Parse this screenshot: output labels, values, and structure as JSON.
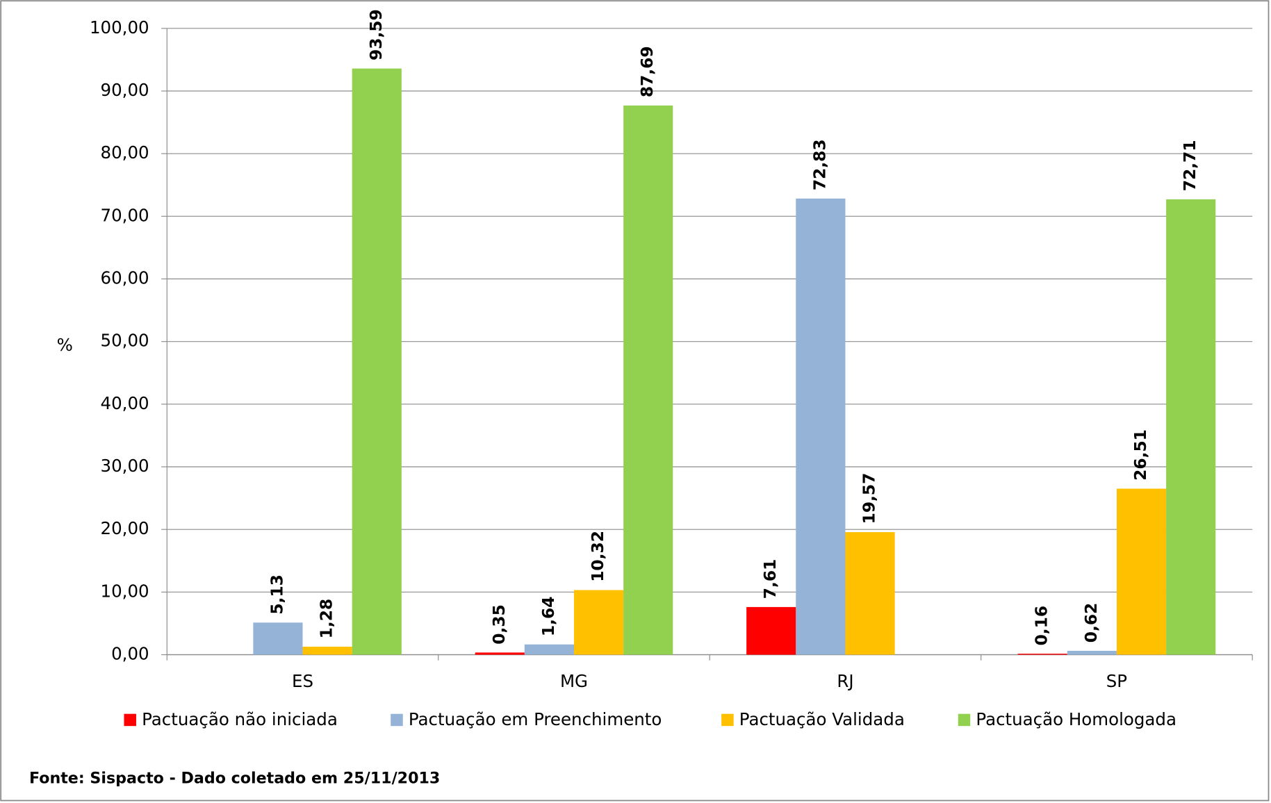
{
  "chart_data": {
    "type": "bar",
    "y_label": "%",
    "categories": [
      "ES",
      "MG",
      "RJ",
      "SP"
    ],
    "series": [
      {
        "name": "Pactuação não iniciada",
        "color": "#ff0000",
        "values": [
          null,
          0.35,
          7.61,
          0.16
        ],
        "value_labels": [
          null,
          "0,35",
          "7,61",
          "0,16"
        ]
      },
      {
        "name": "Pactuação em Preenchimento",
        "color": "#95b3d7",
        "values": [
          5.13,
          1.64,
          72.83,
          0.62
        ],
        "value_labels": [
          "5,13",
          "1,64",
          "72,83",
          "0,62"
        ]
      },
      {
        "name": "Pactuação Validada",
        "color": "#ffc000",
        "values": [
          1.28,
          10.32,
          19.57,
          26.51
        ],
        "value_labels": [
          "1,28",
          "10,32",
          "19,57",
          "26,51"
        ]
      },
      {
        "name": "Pactuação Homologada",
        "color": "#92d050",
        "values": [
          93.59,
          87.69,
          null,
          72.71
        ],
        "value_labels": [
          "93,59",
          "87,69",
          null,
          "72,71"
        ]
      }
    ],
    "ylim": [
      0,
      100
    ],
    "yticks": [
      {
        "value": 0,
        "label": "0,00"
      },
      {
        "value": 10,
        "label": "10,00"
      },
      {
        "value": 20,
        "label": "20,00"
      },
      {
        "value": 30,
        "label": "30,00"
      },
      {
        "value": 40,
        "label": "40,00"
      },
      {
        "value": 50,
        "label": "50,00"
      },
      {
        "value": 60,
        "label": "60,00"
      },
      {
        "value": 70,
        "label": "70,00"
      },
      {
        "value": 80,
        "label": "80,00"
      },
      {
        "value": 90,
        "label": "90,00"
      },
      {
        "value": 100,
        "label": "100,00"
      }
    ],
    "grid": true,
    "legend": "bottom",
    "source": "Fonte: Sispacto - Dado coletado em 25/11/2013"
  }
}
